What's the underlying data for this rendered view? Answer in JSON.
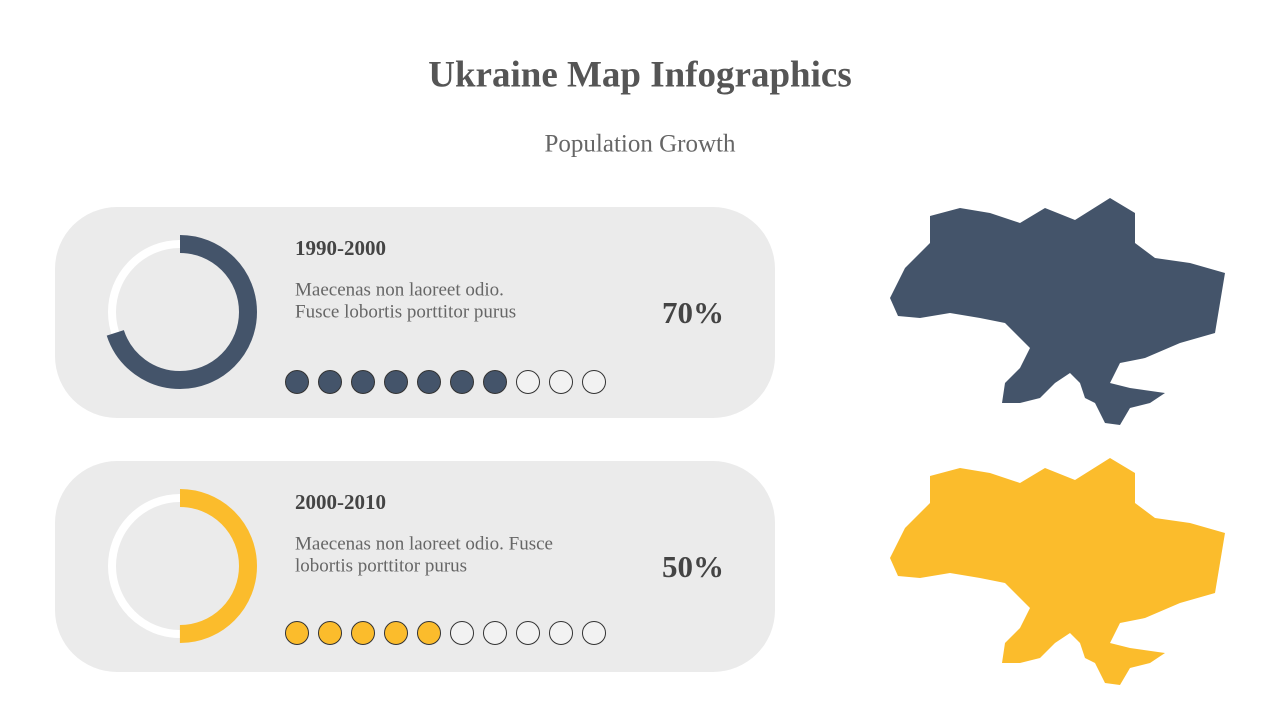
{
  "header": {
    "title": "Ukraine Map Infographics",
    "subtitle": "Population Growth"
  },
  "cards": [
    {
      "period": "1990-2000",
      "description": [
        "Maecenas non laoreet odio.",
        "Fusce lobortis porttitor purus"
      ],
      "value": 70,
      "value_label": "70%",
      "color": "#44546a"
    },
    {
      "period": "2000-2010",
      "description": [
        "Maecenas non laoreet odio. Fusce",
        "lobortis porttitor purus"
      ],
      "value": 50,
      "value_label": "50%",
      "color": "#fbbc2c"
    }
  ]
}
